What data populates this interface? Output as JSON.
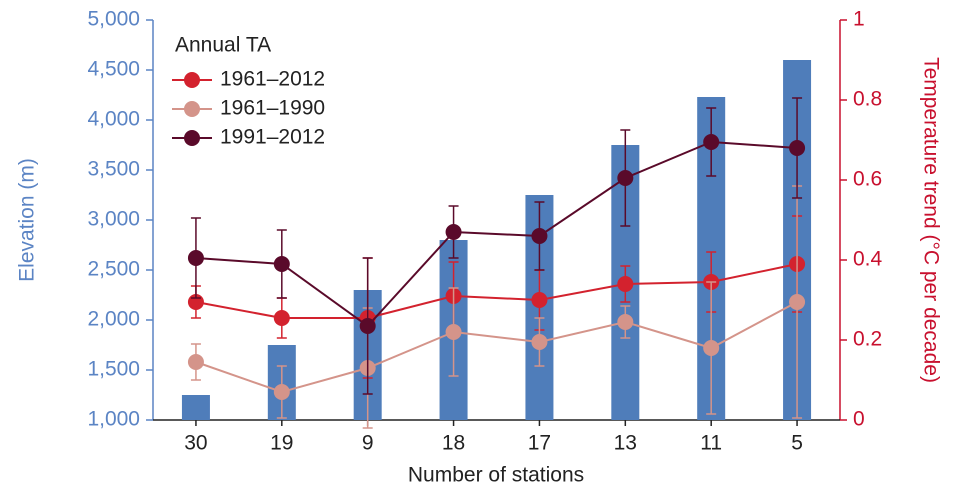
{
  "chart_data": {
    "type": "bar-line",
    "xlabel": "Number of stations",
    "ylabel": "Elevation (m)",
    "y2label": "Temperature trend (°C per decade)",
    "legend_title": "Annual TA",
    "categories": [
      "30",
      "19",
      "9",
      "18",
      "17",
      "13",
      "11",
      "5"
    ],
    "bar_color": "#4f7dba",
    "values": [
      1250,
      1750,
      2300,
      2800,
      3250,
      3750,
      4230,
      4600
    ],
    "ylim": [
      1000,
      5000
    ],
    "yticks": [
      {
        "value": 1000,
        "label": "1,000"
      },
      {
        "value": 1500,
        "label": "1,500"
      },
      {
        "value": 2000,
        "label": "2,000"
      },
      {
        "value": 2500,
        "label": "2,500"
      },
      {
        "value": 3000,
        "label": "3,000"
      },
      {
        "value": 3500,
        "label": "3,500"
      },
      {
        "value": 4000,
        "label": "4,000"
      },
      {
        "value": 4500,
        "label": "4,500"
      },
      {
        "value": 5000,
        "label": "5,000"
      }
    ],
    "y2lim": [
      0,
      1
    ],
    "y2ticks": [
      0,
      0.2,
      0.4,
      0.6,
      0.8,
      1
    ],
    "series": [
      {
        "name": "1961–2012",
        "color": "#d3222e",
        "axis": "y2",
        "values": [
          0.295,
          0.255,
          0.255,
          0.31,
          0.3,
          0.34,
          0.345,
          0.39
        ],
        "errors": [
          0.04,
          0.05,
          0.15,
          0.085,
          0.075,
          0.045,
          0.075,
          0.12
        ]
      },
      {
        "name": "1961–1990",
        "color": "#d4948a",
        "axis": "y2",
        "values": [
          0.145,
          0.07,
          0.13,
          0.22,
          0.195,
          0.245,
          0.18,
          0.295
        ],
        "errors": [
          0.045,
          0.065,
          0.15,
          0.11,
          0.06,
          0.04,
          0.165,
          0.29
        ]
      },
      {
        "name": "1991–2012",
        "color": "#5a0a2a",
        "axis": "y2",
        "values": [
          0.405,
          0.39,
          0.235,
          0.47,
          0.46,
          0.605,
          0.695,
          0.68
        ],
        "errors": [
          0.1,
          0.085,
          0.17,
          0.065,
          0.085,
          0.12,
          0.085,
          0.125
        ]
      }
    ]
  }
}
